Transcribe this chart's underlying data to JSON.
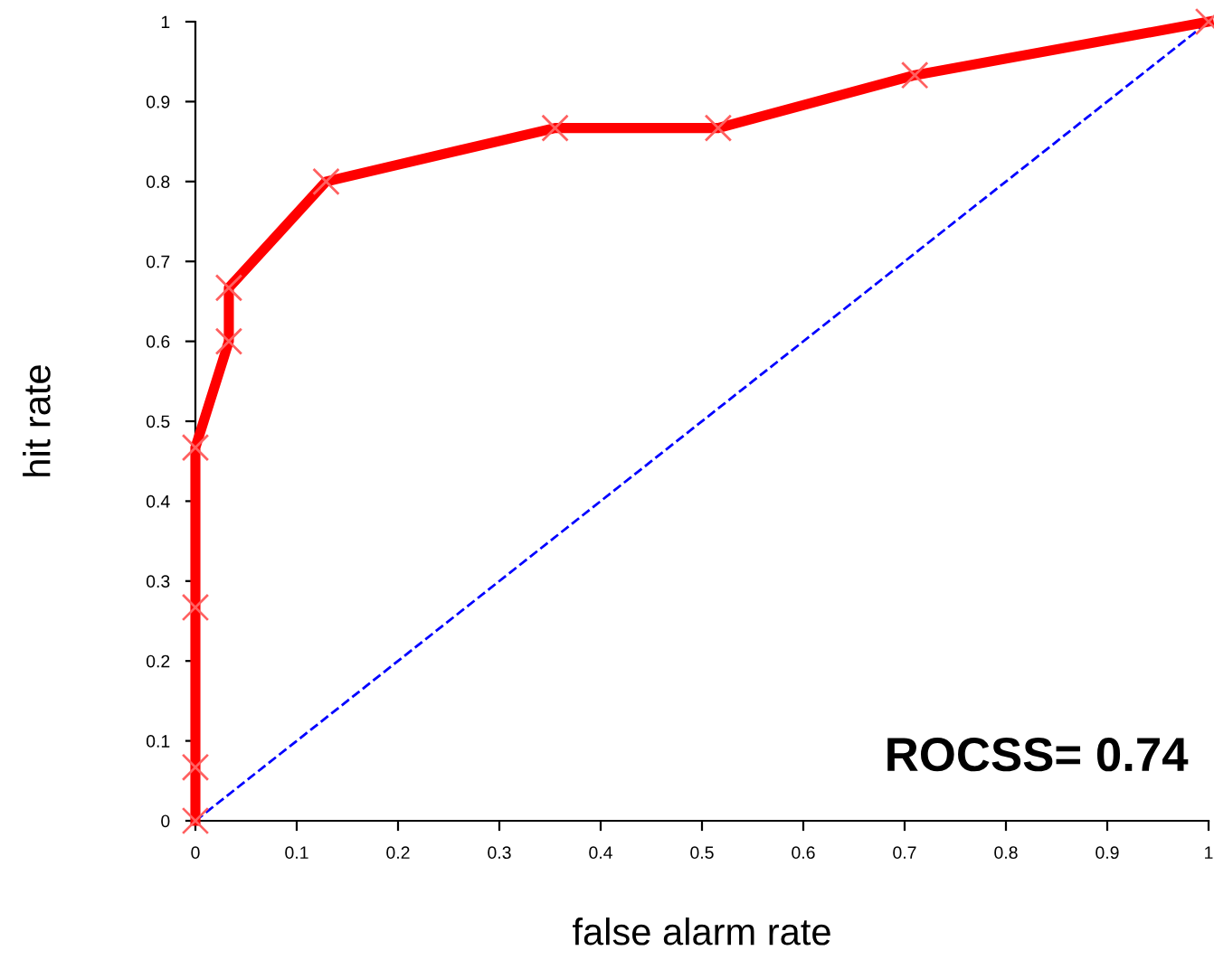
{
  "chart_data": {
    "type": "line",
    "xlabel": "false alarm rate",
    "ylabel": "hit rate",
    "series": [
      {
        "color": "#ff0000",
        "marker": "cross",
        "line_style": "solid",
        "x": [
          0,
          0,
          0,
          0,
          0.033,
          0.033,
          0.129,
          0.355,
          0.516,
          0.71,
          1
        ],
        "values": [
          0,
          0.067,
          0.267,
          0.467,
          0.6,
          0.667,
          0.8,
          0.867,
          0.867,
          0.933,
          1
        ]
      },
      {
        "color": "#0000ff",
        "marker": "none",
        "line_style": "dashed",
        "x": [
          0,
          1
        ],
        "values": [
          0,
          1
        ]
      }
    ],
    "annotations": [
      "ROCSS= 0.74"
    ],
    "xlim": [
      0,
      1
    ],
    "ylim": [
      0,
      1
    ],
    "xticks": [
      0,
      0.1,
      0.2,
      0.3,
      0.4,
      0.5,
      0.6,
      0.7,
      0.8,
      0.9,
      1
    ],
    "yticks": [
      0,
      0.1,
      0.2,
      0.3,
      0.4,
      0.5,
      0.6,
      0.7,
      0.8,
      0.9,
      1
    ],
    "grid": false,
    "legend": false
  }
}
